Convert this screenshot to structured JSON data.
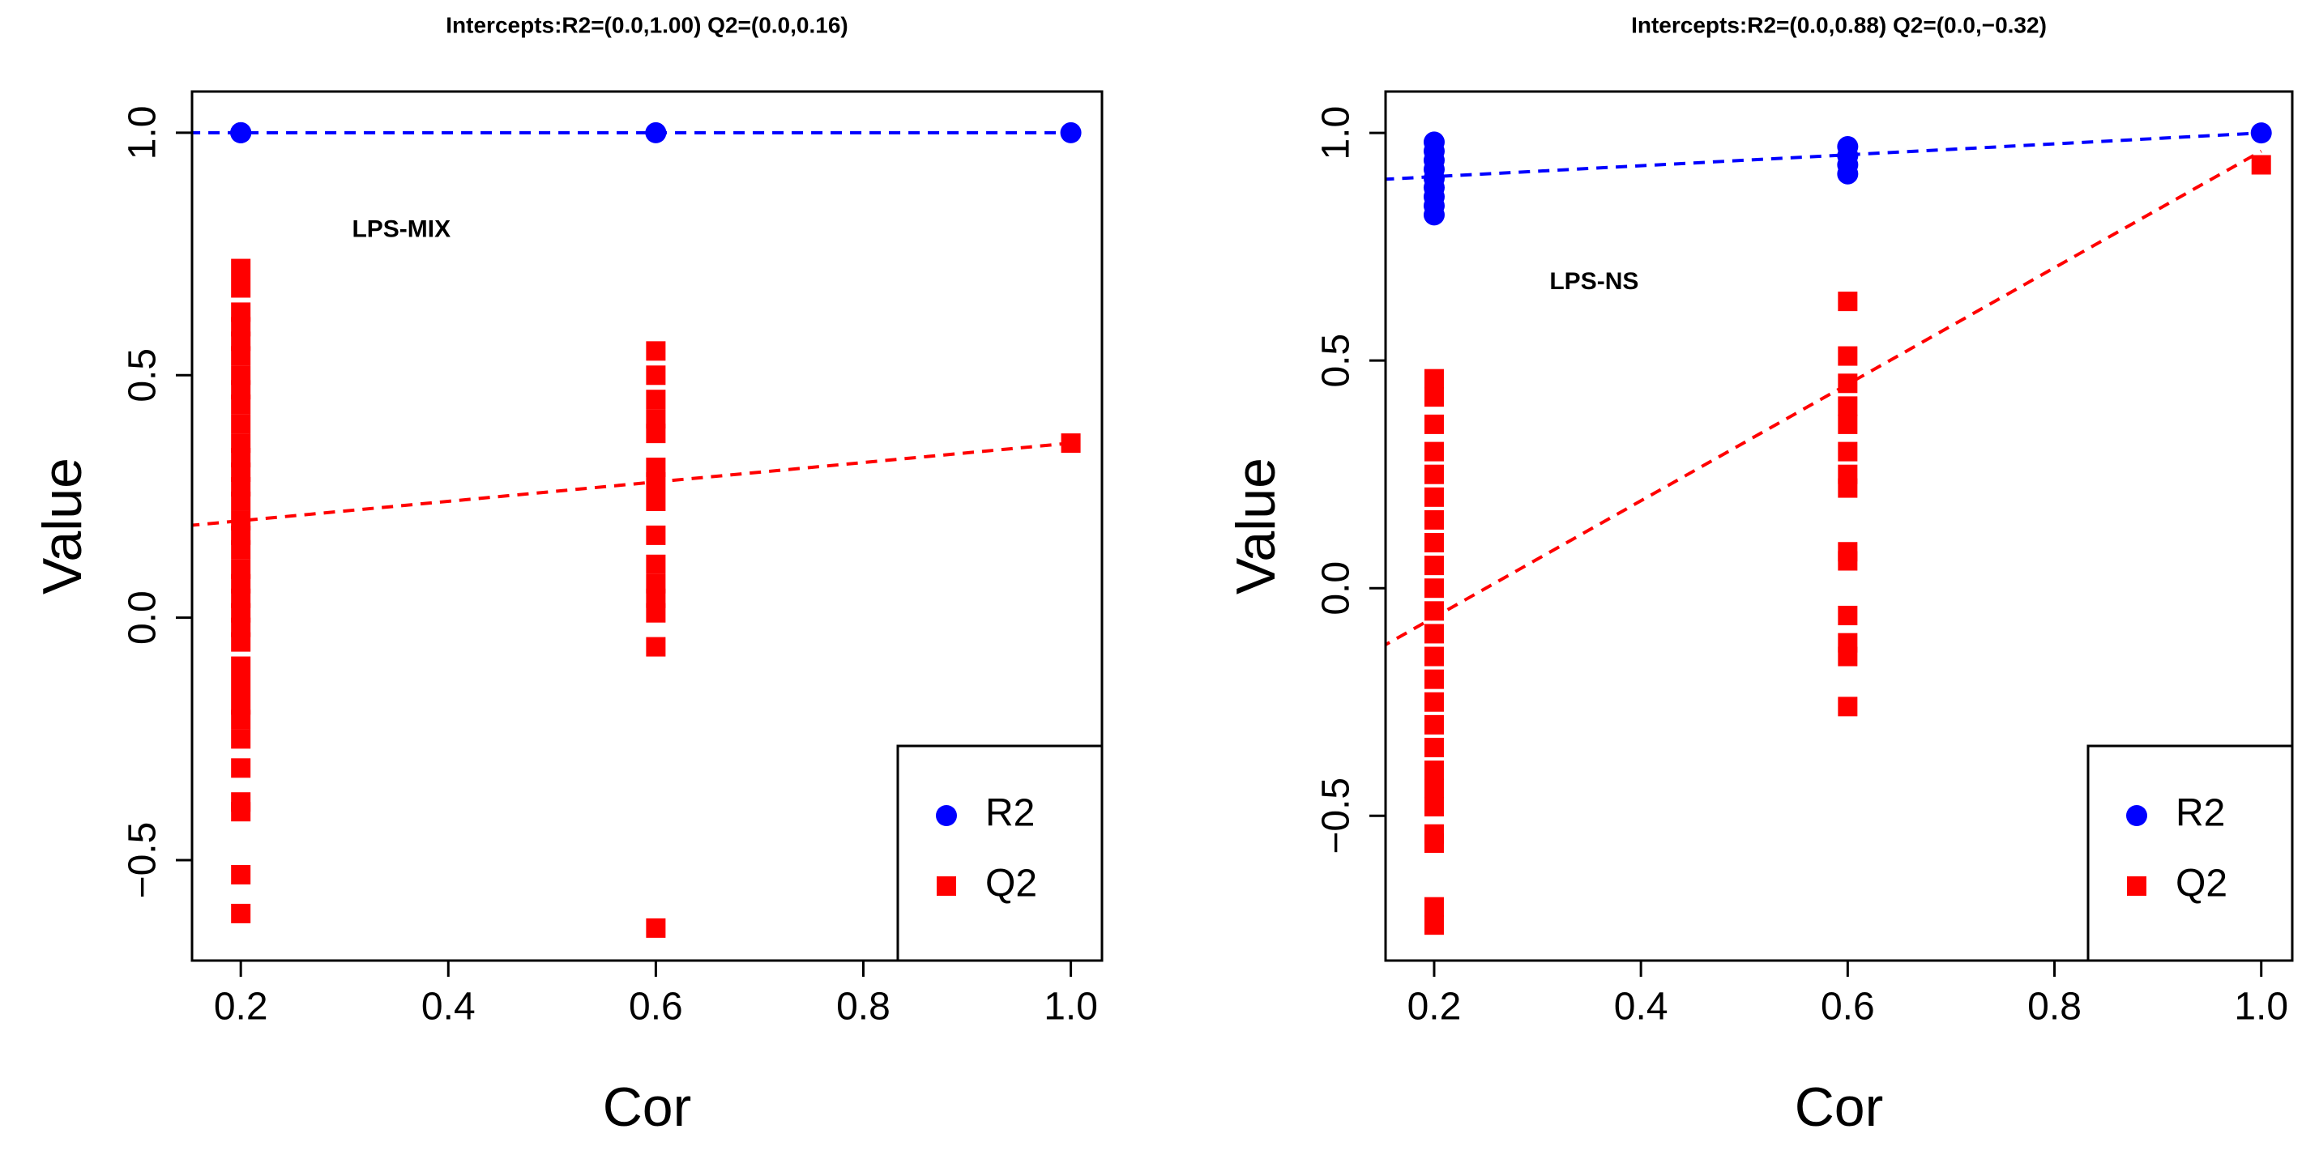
{
  "chart_data": [
    {
      "type": "scatter",
      "title": "Intercepts:R2=(0.0,1.00) Q2=(0.0,0.16)",
      "annotation": "LPS-MIX",
      "x_label": "Cor",
      "y_label": "Value",
      "xlim": [
        0.153,
        1.03
      ],
      "ylim": [
        -0.707,
        1.085
      ],
      "xticks": [
        0.2,
        0.4,
        0.6,
        0.8,
        {
          "value": 1.0,
          "label": "1.0"
        }
      ],
      "yticks": [
        {
          "value": -0.5,
          "label": "−0.5"
        },
        {
          "value": 0.0,
          "label": "0.0"
        },
        0.5,
        {
          "value": 1.0,
          "label": "1.0"
        }
      ],
      "legend": "bottom-right",
      "series": [
        {
          "name": "R2",
          "color": "#0000ff",
          "marker": "circle",
          "x": [
            0.2,
            0.2,
            0.2,
            0.6,
            1.0
          ],
          "values": [
            1.0,
            1.0,
            1.0,
            1.0,
            1.0
          ]
        },
        {
          "name": "Q2",
          "color": "#ff0000",
          "marker": "square",
          "x": [
            0.2,
            0.2,
            0.2,
            0.2,
            0.2,
            0.2,
            0.2,
            0.2,
            0.2,
            0.2,
            0.2,
            0.2,
            0.2,
            0.2,
            0.2,
            0.2,
            0.2,
            0.2,
            0.2,
            0.2,
            0.2,
            0.2,
            0.2,
            0.2,
            0.2,
            0.2,
            0.2,
            0.2,
            0.2,
            0.2,
            0.2,
            0.2,
            0.2,
            0.2,
            0.6,
            0.6,
            0.6,
            0.6,
            0.6,
            0.6,
            0.6,
            0.6,
            0.6,
            0.6,
            0.6,
            0.6,
            0.6,
            0.6,
            0.6,
            1.0
          ],
          "values": [
            0.72,
            0.68,
            0.63,
            0.6,
            0.57,
            0.54,
            0.5,
            0.47,
            0.44,
            0.4,
            0.36,
            0.33,
            0.3,
            0.27,
            0.24,
            0.2,
            0.17,
            0.14,
            0.1,
            0.07,
            0.04,
            0.01,
            -0.02,
            -0.05,
            -0.1,
            -0.14,
            -0.18,
            -0.21,
            -0.25,
            -0.31,
            -0.38,
            -0.4,
            -0.53,
            -0.61,
            0.55,
            0.5,
            0.45,
            0.41,
            0.38,
            0.31,
            0.28,
            0.24,
            0.17,
            0.11,
            0.07,
            0.04,
            0.01,
            -0.06,
            -0.64,
            0.36
          ]
        }
      ],
      "fit_lines": [
        {
          "color": "#0000ff",
          "x": [
            0,
            1
          ],
          "values": [
            1.0,
            1.0
          ]
        },
        {
          "color": "#ff0000",
          "x": [
            0,
            1
          ],
          "values": [
            0.16,
            0.36
          ]
        }
      ]
    },
    {
      "type": "scatter",
      "title": "Intercepts:R2=(0.0,0.88) Q2=(0.0,−0.32)",
      "annotation": "LPS-NS",
      "x_label": "Cor",
      "y_label": "Value",
      "xlim": [
        0.153,
        1.03
      ],
      "ylim": [
        -0.818,
        1.091
      ],
      "xticks": [
        0.2,
        0.4,
        0.6,
        0.8,
        {
          "value": 1.0,
          "label": "1.0"
        }
      ],
      "yticks": [
        {
          "value": -0.5,
          "label": "−0.5"
        },
        {
          "value": 0.0,
          "label": "0.0"
        },
        0.5,
        {
          "value": 1.0,
          "label": "1.0"
        }
      ],
      "legend": "bottom-right",
      "series": [
        {
          "name": "R2",
          "color": "#0000ff",
          "marker": "circle",
          "x": [
            0.2,
            0.2,
            0.2,
            0.2,
            0.2,
            0.2,
            0.2,
            0.2,
            0.2,
            0.6,
            0.6,
            0.6,
            0.6,
            1.0
          ],
          "values": [
            0.98,
            0.96,
            0.94,
            0.92,
            0.9,
            0.88,
            0.86,
            0.84,
            0.82,
            0.97,
            0.95,
            0.93,
            0.91,
            1.0
          ]
        },
        {
          "name": "Q2",
          "color": "#ff0000",
          "marker": "square",
          "x": [
            0.2,
            0.2,
            0.2,
            0.2,
            0.2,
            0.2,
            0.2,
            0.2,
            0.2,
            0.2,
            0.2,
            0.2,
            0.2,
            0.2,
            0.2,
            0.2,
            0.2,
            0.2,
            0.2,
            0.2,
            0.2,
            0.2,
            0.2,
            0.2,
            0.6,
            0.6,
            0.6,
            0.6,
            0.6,
            0.6,
            0.6,
            0.6,
            0.6,
            0.6,
            0.6,
            0.6,
            0.6,
            0.6,
            1.0
          ],
          "values": [
            0.46,
            0.42,
            0.36,
            0.3,
            0.25,
            0.2,
            0.15,
            0.1,
            0.05,
            0.0,
            -0.05,
            -0.1,
            -0.15,
            -0.2,
            -0.25,
            -0.3,
            -0.35,
            -0.4,
            -0.44,
            -0.48,
            -0.54,
            -0.56,
            -0.7,
            -0.74,
            0.63,
            0.51,
            0.45,
            0.4,
            0.36,
            0.3,
            0.25,
            0.22,
            0.08,
            0.06,
            -0.06,
            -0.12,
            -0.15,
            -0.26,
            0.93
          ]
        }
      ],
      "fit_lines": [
        {
          "color": "#0000ff",
          "x": [
            0,
            1
          ],
          "values": [
            0.88,
            1.0
          ]
        },
        {
          "color": "#ff0000",
          "x": [
            0,
            1
          ],
          "values": [
            -0.32,
            0.96
          ]
        }
      ]
    }
  ]
}
